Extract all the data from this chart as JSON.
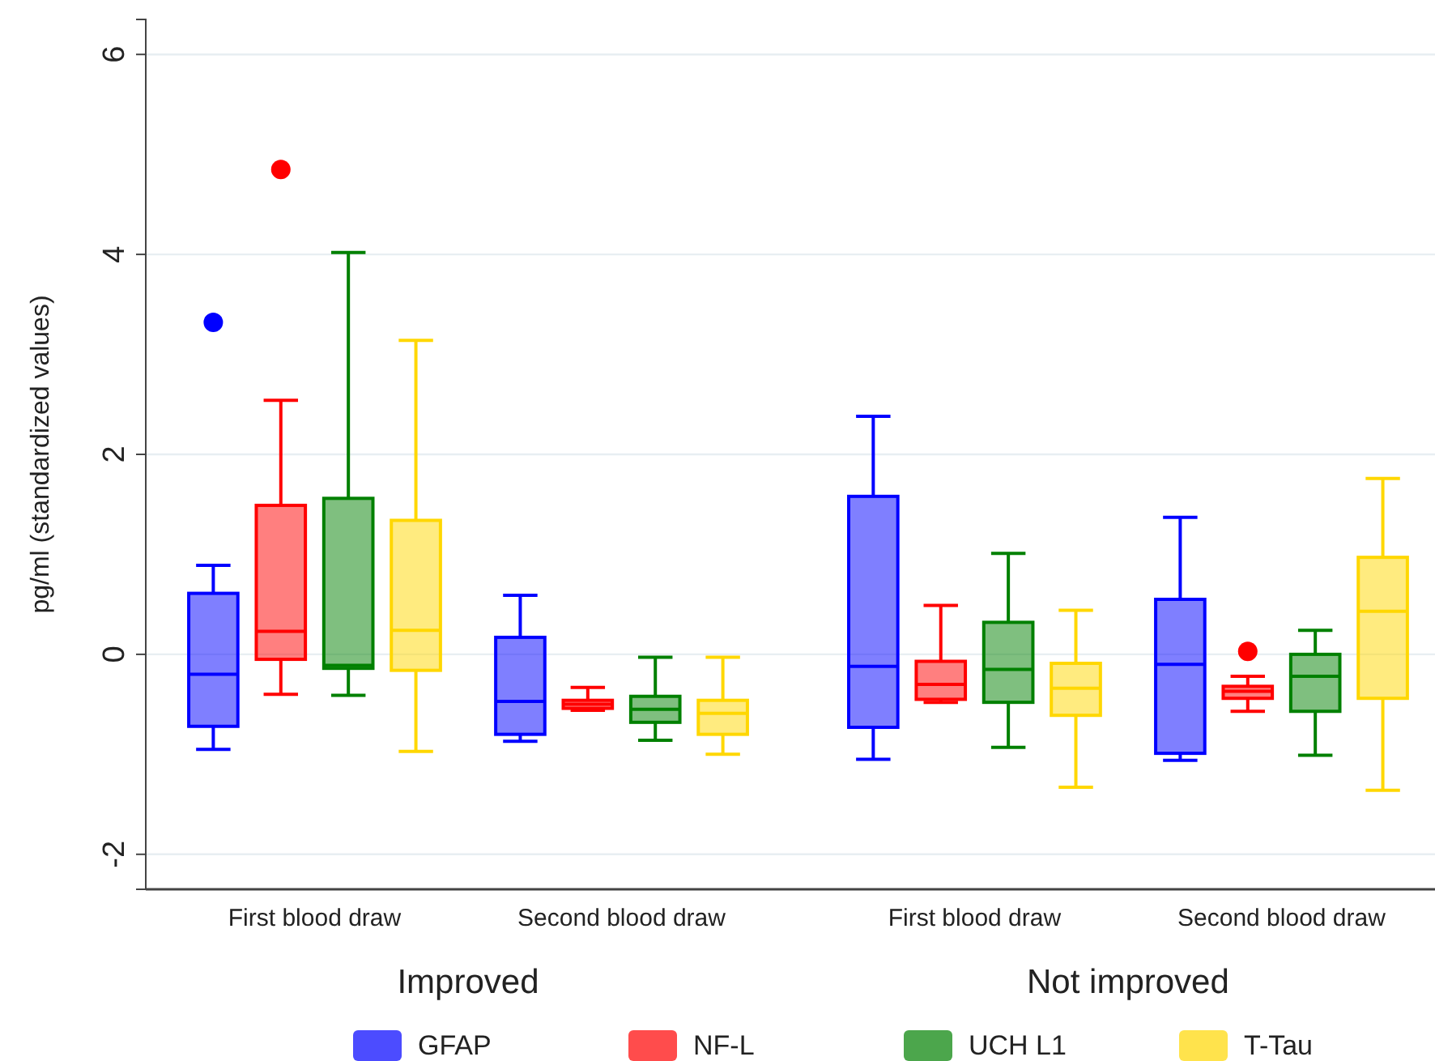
{
  "chart_data": {
    "type": "box",
    "ylabel": "pg/ml (standardized values)",
    "categories": [
      "First blood draw",
      "Second blood draw",
      "First blood draw",
      "Second blood draw"
    ],
    "annotations": [
      "Improved",
      "Not improved"
    ],
    "ylim": [
      -2.35,
      6.35
    ],
    "yticks": [
      -2,
      0,
      2,
      4,
      6
    ],
    "grid": "y",
    "legend": "bottom",
    "series": [
      {
        "name": "GFAP",
        "color": "#0000ff",
        "boxes": [
          {
            "low": -0.95,
            "q1": -0.72,
            "median": -0.2,
            "q3": 0.61,
            "high": 0.89,
            "outliers": [
              3.32
            ]
          },
          {
            "low": -0.87,
            "q1": -0.8,
            "median": -0.47,
            "q3": 0.17,
            "high": 0.59
          },
          {
            "low": -1.05,
            "q1": -0.73,
            "median": -0.12,
            "q3": 1.58,
            "high": 2.38
          },
          {
            "low": -1.06,
            "q1": -0.99,
            "median": -0.1,
            "q3": 0.55,
            "high": 1.37
          }
        ]
      },
      {
        "name": "NF-L",
        "color": "#ff0000",
        "boxes": [
          {
            "low": -0.4,
            "q1": -0.05,
            "median": 0.23,
            "q3": 1.49,
            "high": 2.54,
            "outliers": [
              4.85
            ]
          },
          {
            "low": -0.56,
            "q1": -0.54,
            "median": -0.5,
            "q3": -0.46,
            "high": -0.33
          },
          {
            "low": -0.48,
            "q1": -0.45,
            "median": -0.3,
            "q3": -0.07,
            "high": 0.49
          },
          {
            "low": -0.57,
            "q1": -0.44,
            "median": -0.37,
            "q3": -0.32,
            "high": -0.22,
            "outliers": [
              0.03
            ]
          }
        ]
      },
      {
        "name": "UCH L1",
        "color": "#008000",
        "boxes": [
          {
            "low": -0.41,
            "q1": -0.14,
            "median": -0.11,
            "q3": 1.56,
            "high": 4.02
          },
          {
            "low": -0.86,
            "q1": -0.68,
            "median": -0.55,
            "q3": -0.42,
            "high": -0.03
          },
          {
            "low": -0.93,
            "q1": -0.48,
            "median": -0.15,
            "q3": 0.32,
            "high": 1.01
          },
          {
            "low": -1.01,
            "q1": -0.57,
            "median": -0.22,
            "q3": 0.0,
            "high": 0.24
          }
        ]
      },
      {
        "name": "T-Tau",
        "color": "#ffd700",
        "boxes": [
          {
            "low": -0.97,
            "q1": -0.16,
            "median": 0.24,
            "q3": 1.34,
            "high": 3.14
          },
          {
            "low": -1.0,
            "q1": -0.8,
            "median": -0.59,
            "q3": -0.46,
            "high": -0.03
          },
          {
            "low": -1.33,
            "q1": -0.61,
            "median": -0.34,
            "q3": -0.09,
            "high": 0.44
          },
          {
            "low": -1.36,
            "q1": -0.44,
            "median": 0.43,
            "q3": 0.97,
            "high": 1.76
          }
        ]
      }
    ]
  }
}
